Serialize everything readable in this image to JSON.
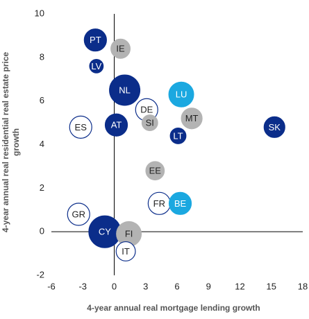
{
  "chart_data": {
    "type": "bubble",
    "xlabel": "4-year annual real mortgage lending growth",
    "ylabel": "4-year annual real residential real estate price growth",
    "xlim": [
      -6,
      18
    ],
    "xticks": [
      -6,
      -3,
      0,
      3,
      6,
      9,
      12,
      15,
      18
    ],
    "ylim": [
      -2,
      10
    ],
    "yticks": [
      -2,
      0,
      2,
      4,
      6,
      8,
      10
    ],
    "labels": [
      "PT",
      "IE",
      "LV",
      "NL",
      "LU",
      "DE",
      "SI",
      "MT",
      "ES",
      "AT",
      "LT",
      "SK",
      "EE",
      "FR",
      "BE",
      "GR",
      "CY",
      "FI",
      "IT"
    ],
    "x": [
      -1.8,
      0.6,
      -1.7,
      1.0,
      6.4,
      3.1,
      3.4,
      7.4,
      -3.2,
      0.2,
      6.1,
      15.3,
      3.9,
      4.3,
      6.3,
      -3.4,
      -0.9,
      1.4,
      1.1
    ],
    "values": [
      8.8,
      8.4,
      7.6,
      6.5,
      6.3,
      5.6,
      5.0,
      5.2,
      4.8,
      4.9,
      4.4,
      4.8,
      2.8,
      1.3,
      1.3,
      0.8,
      0.0,
      -0.1,
      -0.9
    ],
    "sizes": [
      16,
      12,
      6,
      30,
      20,
      16,
      8,
      14,
      16,
      16,
      8,
      14,
      11,
      16,
      16,
      16,
      33,
      20,
      12
    ],
    "colors": [
      "#0b2d8a",
      "#b3b3b3",
      "#0b2d8a",
      "#0b2d8a",
      "#1ba8e0",
      "#ffffff",
      "#b3b3b3",
      "#b3b3b3",
      "#ffffff",
      "#0b2d8a",
      "#0b2d8a",
      "#0b2d8a",
      "#b3b3b3",
      "#ffffff",
      "#1ba8e0",
      "#ffffff",
      "#0b2d8a",
      "#b3b3b3",
      "#ffffff"
    ]
  }
}
